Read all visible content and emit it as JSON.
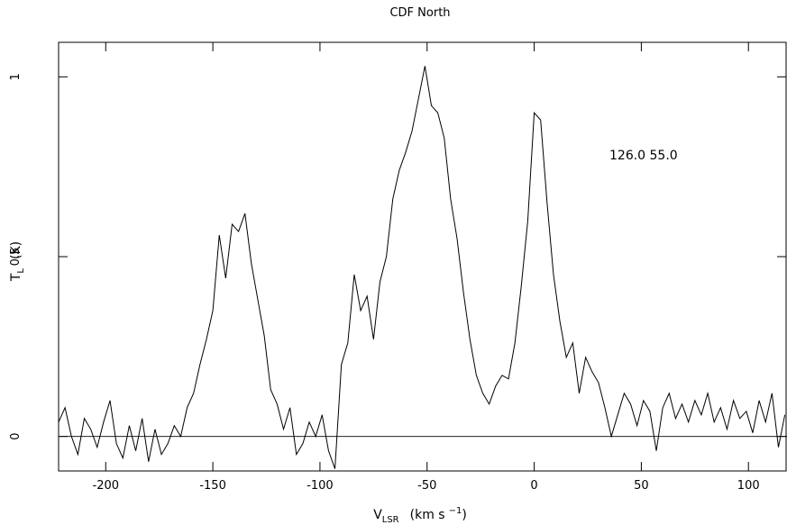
{
  "chart_data": {
    "type": "line",
    "title": "CDF North",
    "x_label": {
      "main": "V",
      "sub": "LSR",
      "rest": "(km s",
      "sup": "−1",
      "end": ")"
    },
    "y_label": {
      "main": "T",
      "sub": "L",
      "rest": "(K)"
    },
    "annotation": "126.0   55.0",
    "xlim": [
      -222,
      118
    ],
    "ylim": [
      -0.096,
      1.096
    ],
    "xticks": [
      -200,
      -150,
      -100,
      -50,
      0,
      50,
      100
    ],
    "yticks": [
      0,
      0.5,
      1
    ],
    "reference_line": 0,
    "series": [
      {
        "color": "#000000",
        "x": [
          -222,
          -219,
          -216,
          -213,
          -210,
          -207,
          -204,
          -201,
          -198,
          -195,
          -192,
          -189,
          -186,
          -183,
          -180,
          -177,
          -174,
          -171,
          -168,
          -165,
          -162,
          -159,
          -156,
          -153,
          -150,
          -147,
          -144,
          -141,
          -138,
          -135,
          -132,
          -129,
          -126,
          -123,
          -120,
          -117,
          -114,
          -111,
          -108,
          -105,
          -102,
          -99,
          -96,
          -93,
          -90,
          -87,
          -84,
          -81,
          -78,
          -75,
          -72,
          -69,
          -66,
          -63,
          -60,
          -57,
          -54,
          -51,
          -48,
          -45,
          -42,
          -39,
          -36,
          -33,
          -30,
          -27,
          -24,
          -21,
          -18,
          -15,
          -12,
          -9,
          -6,
          -3,
          0,
          3,
          6,
          9,
          12,
          15,
          18,
          21,
          24,
          27,
          30,
          33,
          36,
          39,
          42,
          45,
          48,
          51,
          54,
          57,
          60,
          63,
          66,
          69,
          72,
          75,
          78,
          81,
          84,
          87,
          90,
          93,
          96,
          99,
          102,
          105,
          108,
          111,
          114,
          117
        ],
        "values": [
          0.04,
          0.08,
          0.0,
          -0.05,
          0.05,
          0.02,
          -0.03,
          0.04,
          0.1,
          -0.02,
          -0.06,
          0.03,
          -0.04,
          0.05,
          -0.07,
          0.02,
          -0.05,
          -0.02,
          0.03,
          0.0,
          0.08,
          0.12,
          0.2,
          0.27,
          0.35,
          0.56,
          0.44,
          0.59,
          0.57,
          0.62,
          0.48,
          0.38,
          0.28,
          0.13,
          0.09,
          0.02,
          0.08,
          -0.05,
          -0.02,
          0.04,
          0.0,
          0.06,
          -0.04,
          -0.09,
          0.2,
          0.26,
          0.45,
          0.35,
          0.39,
          0.27,
          0.43,
          0.5,
          0.66,
          0.74,
          0.79,
          0.85,
          0.94,
          1.03,
          0.92,
          0.9,
          0.83,
          0.66,
          0.55,
          0.4,
          0.27,
          0.17,
          0.12,
          0.09,
          0.14,
          0.17,
          0.16,
          0.26,
          0.42,
          0.6,
          0.9,
          0.88,
          0.65,
          0.45,
          0.32,
          0.22,
          0.26,
          0.12,
          0.22,
          0.18,
          0.15,
          0.08,
          0.0,
          0.06,
          0.12,
          0.09,
          0.03,
          0.1,
          0.07,
          -0.04,
          0.08,
          0.12,
          0.05,
          0.09,
          0.04,
          0.1,
          0.06,
          0.12,
          0.04,
          0.08,
          0.02,
          0.1,
          0.05,
          0.07,
          0.01,
          0.1,
          0.04,
          0.12,
          -0.03,
          0.06
        ]
      }
    ]
  }
}
